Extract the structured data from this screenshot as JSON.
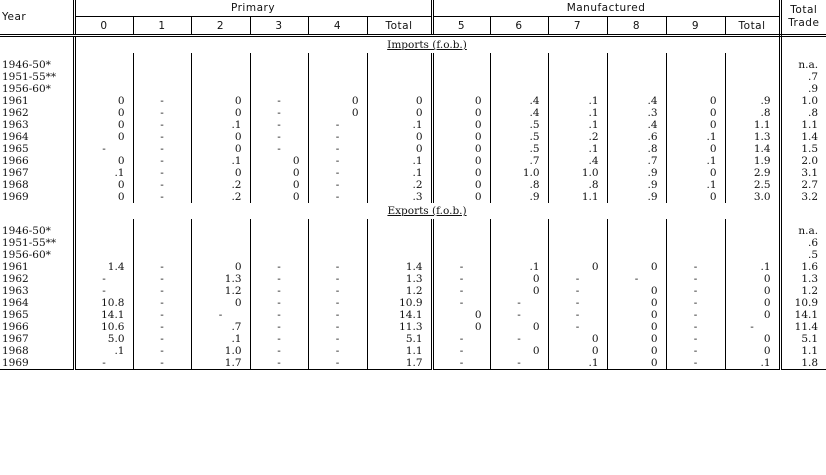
{
  "header": {
    "year": "Year",
    "primary": "Primary",
    "manufactured": "Manufactured",
    "total_trade": [
      "Total",
      "Trade"
    ],
    "columns": [
      "0",
      "1",
      "2",
      "3",
      "4",
      "Total",
      "5",
      "6",
      "7",
      "8",
      "9",
      "Total"
    ]
  },
  "sections": [
    {
      "title": "Imports (f.o.b.)",
      "rows": [
        [
          "1946-50*",
          "",
          "",
          "",
          "",
          "",
          "",
          "",
          "",
          "",
          "",
          "",
          "",
          "n.a."
        ],
        [
          "1951-55**",
          "",
          "",
          "",
          "",
          "",
          "",
          "",
          "",
          "",
          "",
          "",
          "",
          ".7"
        ],
        [
          "1956-60*",
          "",
          "",
          "",
          "",
          "",
          "",
          "",
          "",
          "",
          "",
          "",
          "",
          ".9"
        ],
        [
          "1961",
          "0",
          "-",
          "0",
          "-",
          "0",
          "0",
          "0",
          ".4",
          ".1",
          ".4",
          "0",
          ".9",
          "1.0"
        ],
        [
          "1962",
          "0",
          "-",
          "0",
          "-",
          "0",
          "0",
          "0",
          ".4",
          ".1",
          ".3",
          "0",
          ".8",
          ".8"
        ],
        [
          "1963",
          "0",
          "-",
          ".1",
          "-",
          "-",
          ".1",
          "0",
          ".5",
          ".1",
          ".4",
          "0",
          "1.1",
          "1.1"
        ],
        [
          "1964",
          "0",
          "-",
          "0",
          "-",
          "-",
          "0",
          "0",
          ".5",
          ".2",
          ".6",
          ".1",
          "1.3",
          "1.4"
        ],
        [
          "1965",
          "-",
          "-",
          "0",
          "-",
          "-",
          "0",
          "0",
          ".5",
          ".1",
          ".8",
          "0",
          "1.4",
          "1.5"
        ],
        [
          "1966",
          "0",
          "-",
          ".1",
          "0",
          "-",
          ".1",
          "0",
          ".7",
          ".4",
          ".7",
          ".1",
          "1.9",
          "2.0"
        ],
        [
          "1967",
          ".1",
          "-",
          "0",
          "0",
          "-",
          ".1",
          "0",
          "1.0",
          "1.0",
          ".9",
          "0",
          "2.9",
          "3.1"
        ],
        [
          "1968",
          "0",
          "-",
          ".2",
          "0",
          "-",
          ".2",
          "0",
          ".8",
          ".8",
          ".9",
          ".1",
          "2.5",
          "2.7"
        ],
        [
          "1969",
          "0",
          "-",
          ".2",
          "0",
          "-",
          ".3",
          "0",
          ".9",
          "1.1",
          ".9",
          "0",
          "3.0",
          "3.2"
        ]
      ]
    },
    {
      "title": "Exports (f.o.b.)",
      "rows": [
        [
          "1946-50*",
          "",
          "",
          "",
          "",
          "",
          "",
          "",
          "",
          "",
          "",
          "",
          "",
          "n.a."
        ],
        [
          "1951-55**",
          "",
          "",
          "",
          "",
          "",
          "",
          "",
          "",
          "",
          "",
          "",
          "",
          ".6"
        ],
        [
          "1956-60*",
          "",
          "",
          "",
          "",
          "",
          "",
          "",
          "",
          "",
          "",
          "",
          "",
          ".5"
        ],
        [
          "1961",
          "1.4",
          "-",
          "0",
          "-",
          "-",
          "1.4",
          "-",
          ".1",
          "0",
          "0",
          "-",
          ".1",
          "1.6"
        ],
        [
          "1962",
          "-",
          "-",
          "1.3",
          "-",
          "-",
          "1.3",
          "-",
          "0",
          "-",
          "-",
          "-",
          "0",
          "1.3"
        ],
        [
          "1963",
          "-",
          "-",
          "1.2",
          "-",
          "-",
          "1.2",
          "-",
          "0",
          "-",
          "0",
          "-",
          "0",
          "1.2"
        ],
        [
          "1964",
          "10.8",
          "-",
          "0",
          "-",
          "-",
          "10.9",
          "-",
          "-",
          "-",
          "0",
          "-",
          "0",
          "10.9"
        ],
        [
          "1965",
          "14.1",
          "-",
          "-",
          "-",
          "-",
          "14.1",
          "0",
          "-",
          "-",
          "0",
          "-",
          "0",
          "14.1"
        ],
        [
          "1966",
          "10.6",
          "-",
          ".7",
          "-",
          "-",
          "11.3",
          "0",
          "0",
          "-",
          "0",
          "-",
          "-",
          "11.4"
        ],
        [
          "1967",
          "5.0",
          "-",
          ".1",
          "-",
          "-",
          "5.1",
          "-",
          "-",
          "0",
          "0",
          "-",
          "0",
          "5.1"
        ],
        [
          "1968",
          ".1",
          "-",
          "1.0",
          "-",
          "-",
          "1.1",
          "-",
          "0",
          "0",
          "0",
          "-",
          "0",
          "1.1"
        ],
        [
          "1969",
          "-",
          "-",
          "1.7",
          "-",
          "-",
          "1.7",
          "-",
          "-",
          ".1",
          "0",
          "-",
          ".1",
          "1.8"
        ]
      ]
    }
  ]
}
